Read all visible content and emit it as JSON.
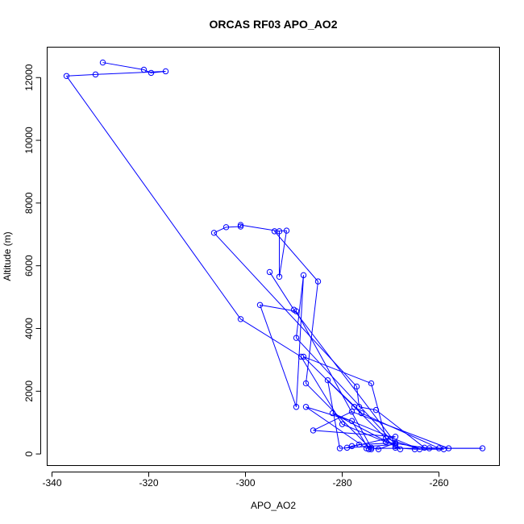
{
  "chart_data": {
    "type": "line",
    "title": "ORCAS RF03 APO_AO2",
    "xlabel": "APO_AO2",
    "ylabel": "Altitude (m)",
    "xlim": [
      -341,
      -247.5
    ],
    "ylim": [
      -370,
      12970
    ],
    "xticks": [
      -340,
      -320,
      -300,
      -280,
      -260
    ],
    "yticks": [
      0,
      2000,
      4000,
      6000,
      8000,
      10000,
      12000
    ],
    "xtick_labels": [
      "-340",
      "-320",
      "-300",
      "-280",
      "-260"
    ],
    "ytick_labels": [
      "0",
      "2000",
      "4000",
      "6000",
      "8000",
      "10000",
      "12000"
    ],
    "grid": false,
    "series": [
      {
        "color": "#0000ff",
        "points": [
          [
            -329.5,
            12480
          ],
          [
            -321,
            12250
          ],
          [
            -319.5,
            12150
          ],
          [
            -316.5,
            12200
          ],
          [
            -331,
            12100
          ],
          [
            -337,
            12050
          ],
          [
            -301,
            4300
          ],
          [
            -288.5,
            3100
          ],
          [
            -280,
            950
          ],
          [
            -271,
            380
          ],
          [
            -262,
            180
          ],
          [
            -251,
            180
          ],
          [
            -275,
            180
          ],
          [
            -287.5,
            1500
          ],
          [
            -278,
            1050
          ],
          [
            -274.5,
            150
          ],
          [
            -274,
            150
          ],
          [
            -287.5,
            2250
          ],
          [
            -285,
            5500
          ],
          [
            -294,
            7100
          ],
          [
            -291.5,
            7120
          ],
          [
            -293,
            5650
          ],
          [
            -293,
            7100
          ],
          [
            -301,
            7300
          ],
          [
            -301,
            7250
          ],
          [
            -304,
            7230
          ],
          [
            -306.5,
            7050
          ],
          [
            -277,
            2150
          ],
          [
            -276.5,
            1500
          ],
          [
            -273,
            1400
          ],
          [
            -263,
            200
          ],
          [
            -258,
            180
          ],
          [
            -278,
            1350
          ],
          [
            -286,
            750
          ],
          [
            -269,
            550
          ],
          [
            -279,
            200
          ],
          [
            -278,
            250
          ],
          [
            -276.5,
            300
          ],
          [
            -269,
            350
          ],
          [
            -272.5,
            150
          ],
          [
            -274,
            200
          ],
          [
            -289.5,
            4550
          ],
          [
            -297,
            4750
          ],
          [
            -289.5,
            1500
          ],
          [
            -288,
            5700
          ],
          [
            -289.5,
            3700
          ],
          [
            -269,
            300
          ],
          [
            -280.5,
            180
          ],
          [
            -283,
            2350
          ],
          [
            -276,
            1300
          ],
          [
            -260,
            180
          ],
          [
            -259,
            150
          ],
          [
            -265,
            150
          ],
          [
            -269,
            200
          ],
          [
            -277.5,
            1500
          ],
          [
            -288,
            3100
          ],
          [
            -274,
            2250
          ],
          [
            -271,
            500
          ],
          [
            -264,
            150
          ],
          [
            -282,
            1300
          ],
          [
            -269,
            250
          ],
          [
            -268,
            150
          ],
          [
            -290,
            4600
          ],
          [
            -295,
            5800
          ]
        ]
      }
    ]
  }
}
